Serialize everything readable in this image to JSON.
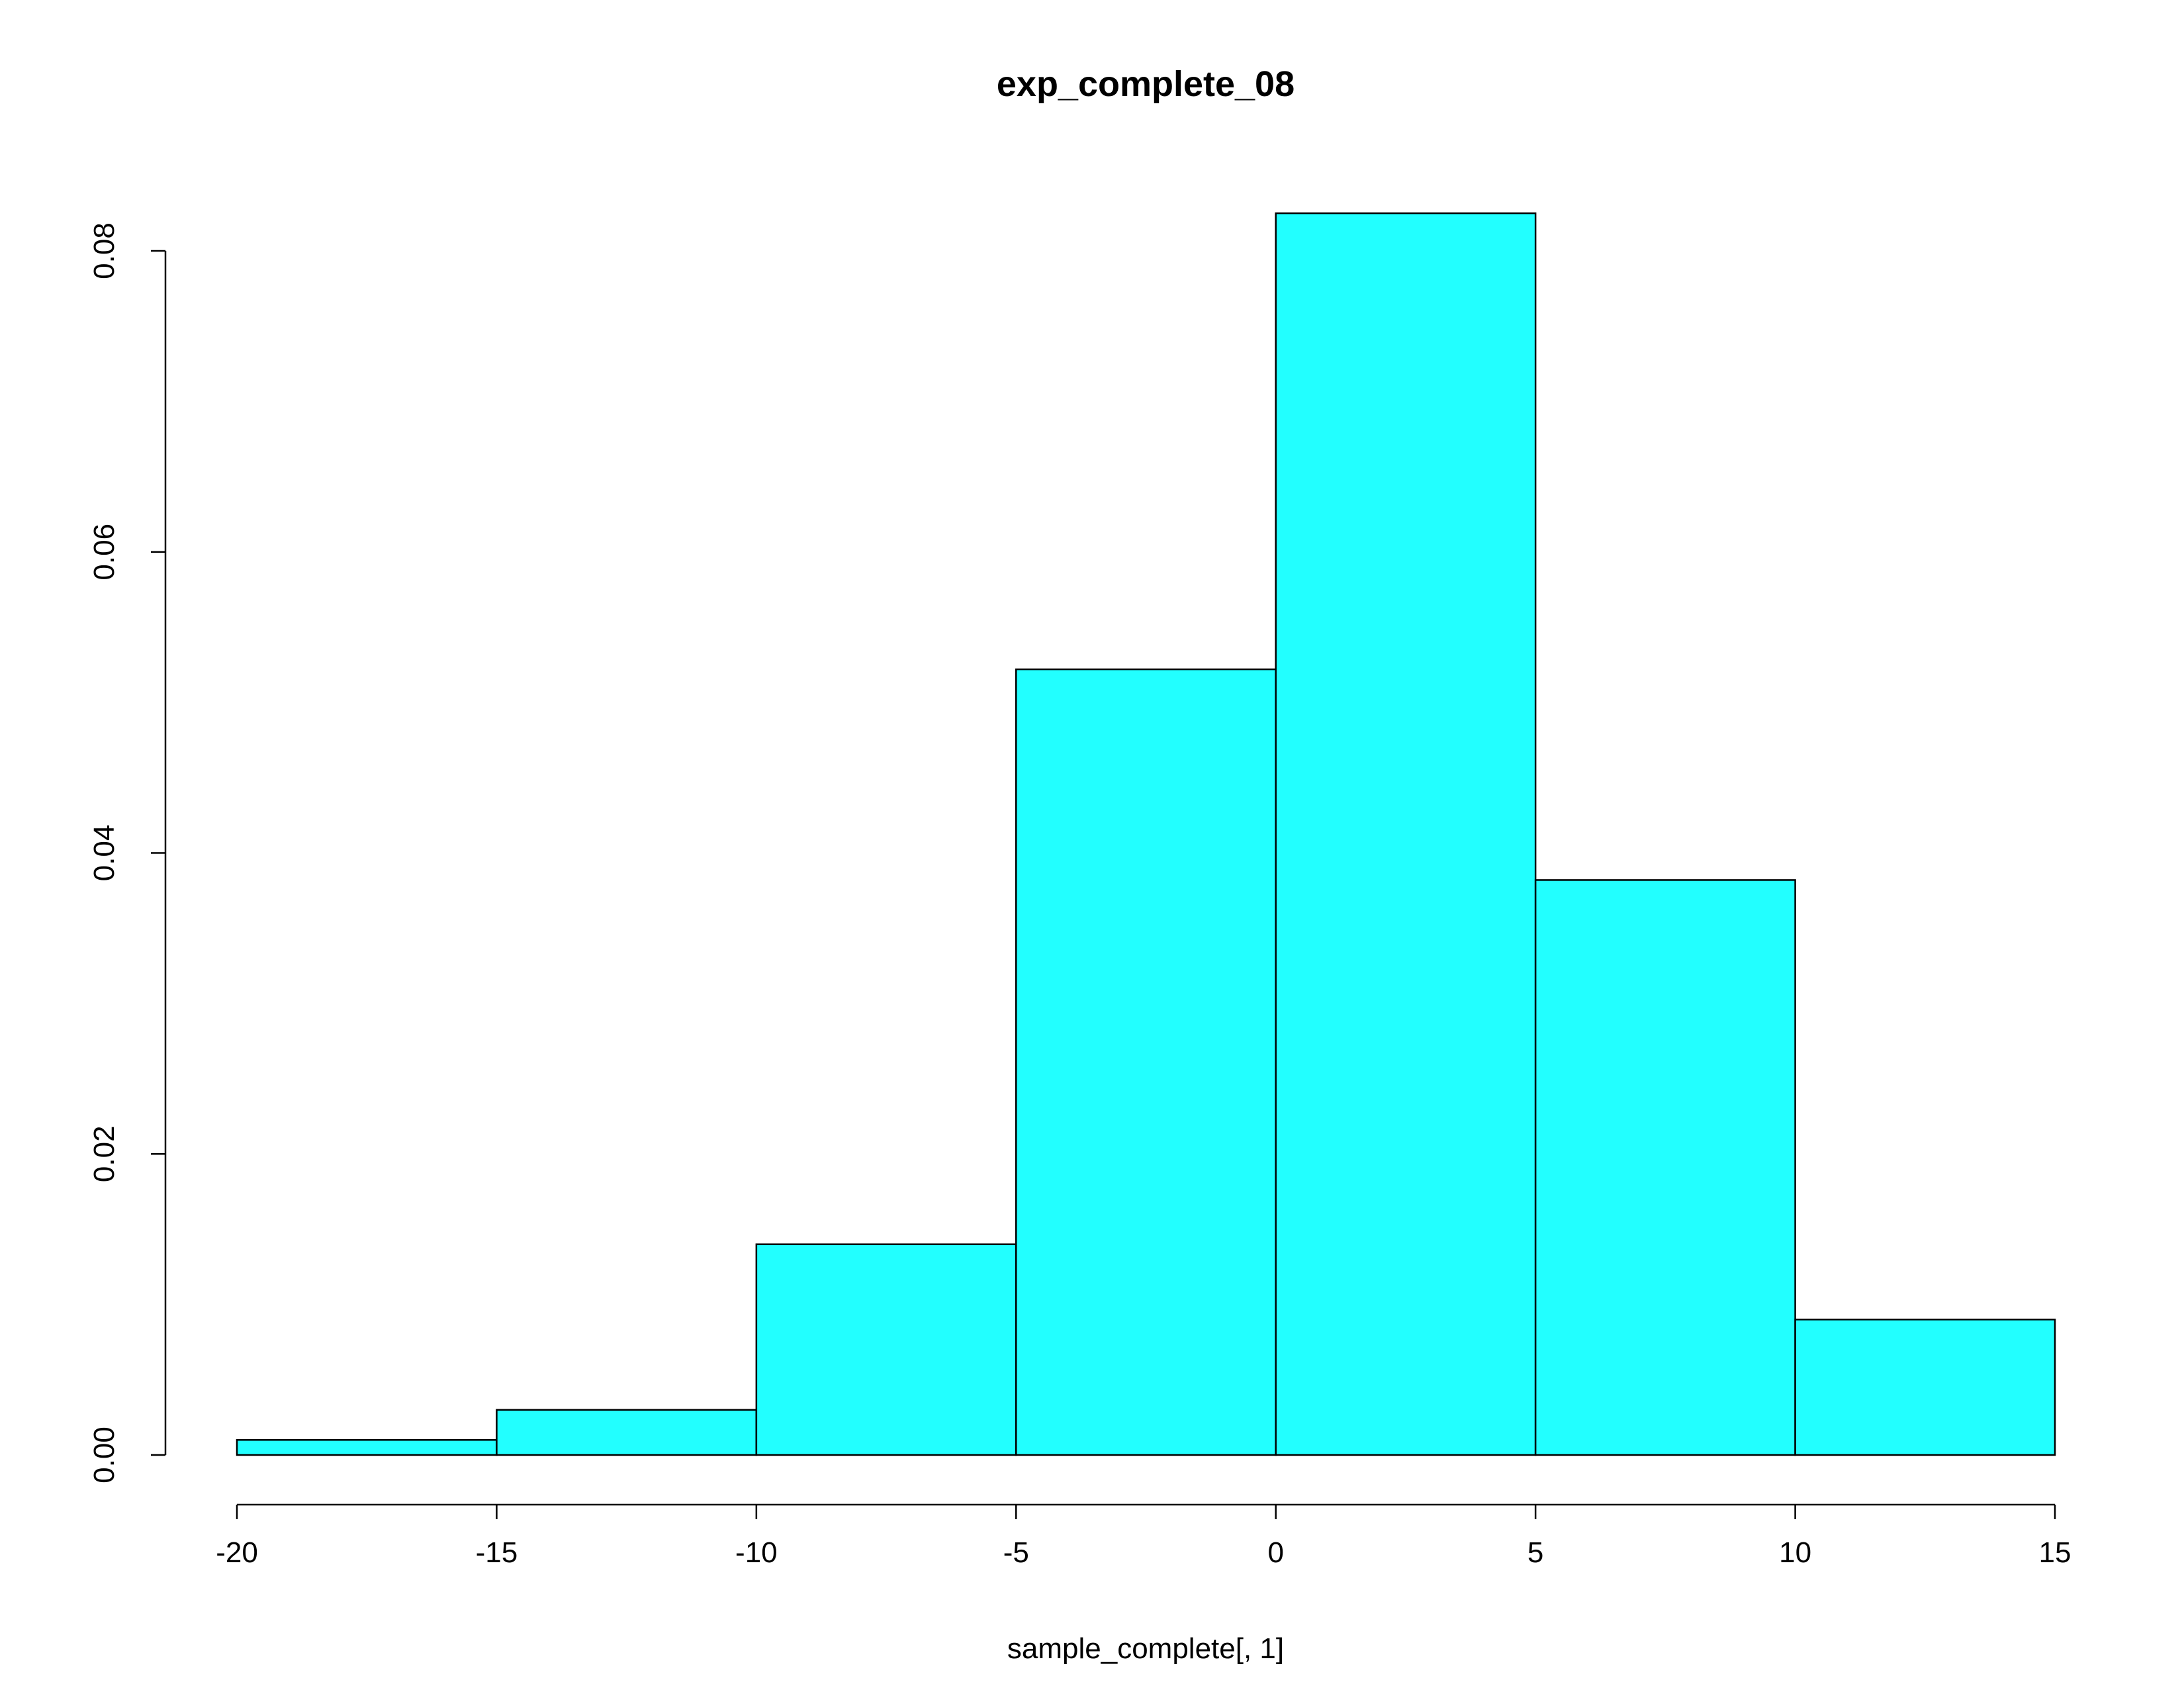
{
  "chart_data": {
    "type": "bar",
    "title": "exp_complete_08",
    "xlabel": "sample_complete[, 1]",
    "ylabel": "",
    "bins": [
      {
        "start": -20,
        "end": -15,
        "value": 0.001
      },
      {
        "start": -15,
        "end": -10,
        "value": 0.003
      },
      {
        "start": -10,
        "end": -5,
        "value": 0.014
      },
      {
        "start": -5,
        "end": 0,
        "value": 0.0522
      },
      {
        "start": 0,
        "end": 5,
        "value": 0.0825
      },
      {
        "start": 5,
        "end": 10,
        "value": 0.0382
      },
      {
        "start": 10,
        "end": 15,
        "value": 0.009
      }
    ],
    "xlim": [
      -20,
      15
    ],
    "ylim": [
      0,
      0.08
    ],
    "xticks": [
      -20,
      -15,
      -10,
      -5,
      0,
      5,
      10,
      15
    ],
    "xtick_labels": [
      "-20",
      "-15",
      "-10",
      "-5",
      "0",
      "5",
      "10",
      "15"
    ],
    "yticks": [
      0,
      0.02,
      0.04,
      0.06,
      0.08
    ],
    "ytick_labels": [
      "0.00",
      "0.02",
      "0.04",
      "0.06",
      "0.08"
    ],
    "grid": false,
    "colors": {
      "bar_fill": "#22ffff",
      "bar_stroke": "#000000"
    }
  }
}
